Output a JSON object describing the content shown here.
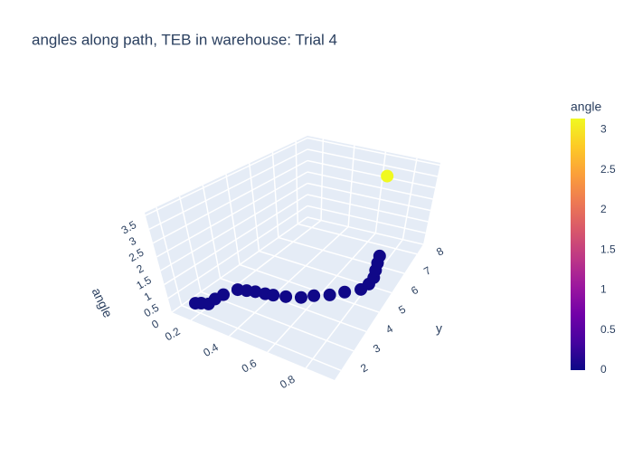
{
  "chart_data": {
    "type": "scatter3d",
    "title": "angles along path, TEB in warehouse: Trial 4",
    "axis_titles": {
      "y": "y",
      "z": "angle"
    },
    "series": [
      {
        "x": [
          0.14,
          0.16,
          0.19,
          0.19,
          0.2,
          0.23,
          0.27,
          0.31,
          0.36,
          0.4,
          0.46,
          0.53,
          0.58,
          0.65,
          0.71,
          0.78,
          0.8,
          0.8,
          0.78,
          0.76,
          0.74,
          0.7
        ],
        "y": [
          2.34,
          2.45,
          2.55,
          2.9,
          3.25,
          3.74,
          3.85,
          3.95,
          4.02,
          4.09,
          4.23,
          4.44,
          4.72,
          5,
          5.35,
          5.7,
          6.05,
          6.4,
          6.75,
          7.1,
          7.45,
          7.8
        ],
        "z": [
          0.02,
          0.02,
          0.02,
          0.02,
          0.02,
          0.02,
          0.02,
          0.02,
          0.02,
          0.02,
          0.02,
          0.02,
          0.02,
          0.02,
          0.02,
          0.02,
          0.02,
          0.02,
          0.02,
          0.02,
          0.02,
          3.14
        ]
      }
    ],
    "xlim": [
      0.1,
      0.95
    ],
    "ylim": [
      1.5,
      8.5
    ],
    "zlim": [
      0,
      3.6
    ],
    "xticks": [
      0.2,
      0.4,
      0.6,
      0.8
    ],
    "yticks": [
      2,
      3,
      4,
      5,
      6,
      7,
      8
    ],
    "zticks": [
      0,
      0.5,
      1,
      1.5,
      2,
      2.5,
      3,
      3.5
    ],
    "colorbar": {
      "title": "angle",
      "lim": [
        0,
        3.14
      ],
      "ticks": [
        0,
        0.5,
        1,
        1.5,
        2,
        2.5,
        3
      ],
      "colorscale": [
        "#0d0887",
        "#46039f",
        "#7201a8",
        "#9c179e",
        "#bd3786",
        "#d8576b",
        "#ed7953",
        "#fb9f3a",
        "#fdca26",
        "#f0f921"
      ]
    }
  }
}
